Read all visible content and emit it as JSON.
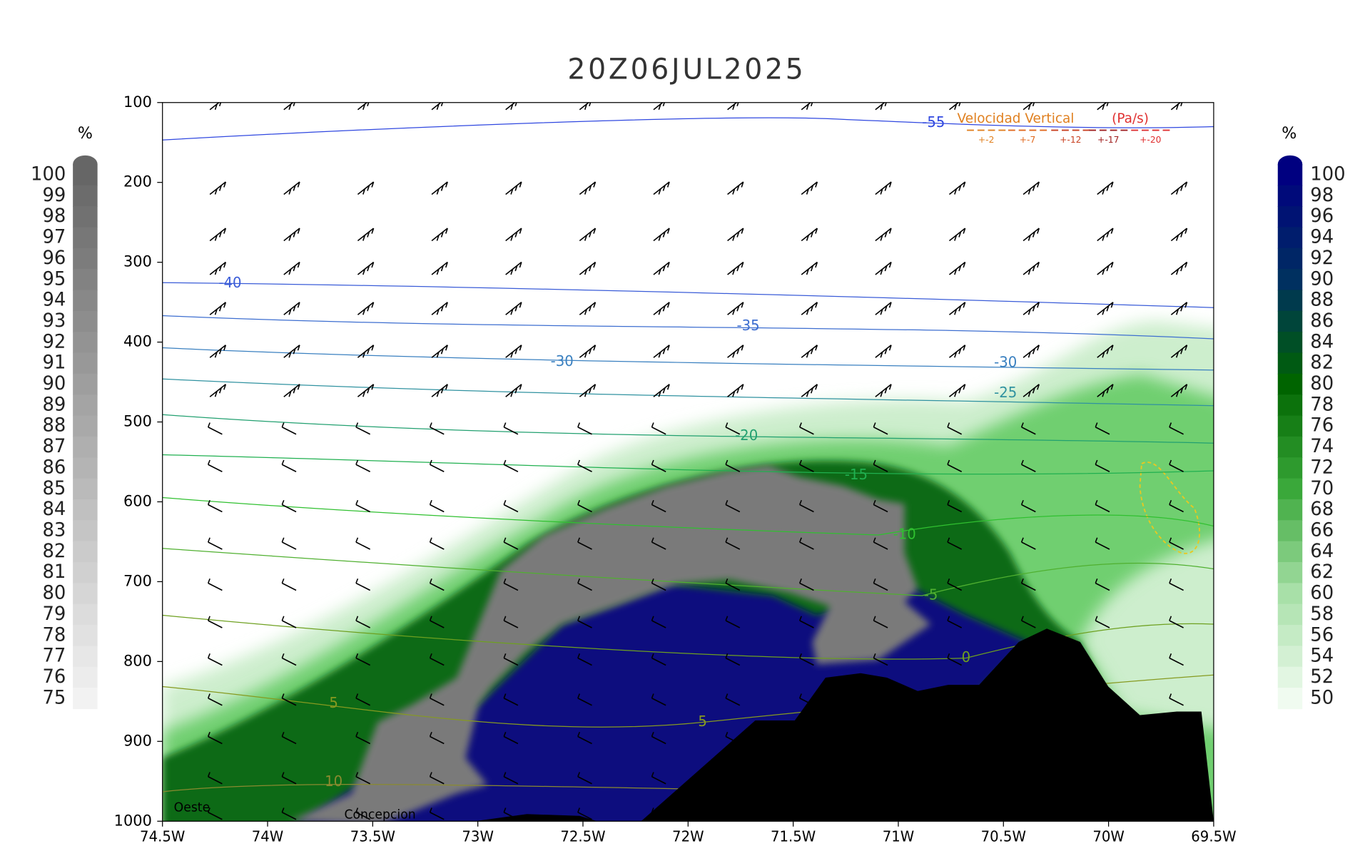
{
  "chart_data": {
    "type": "cross-section",
    "title": "20Z06JUL2025",
    "xlim": [
      -74.5,
      -69.5
    ],
    "xticks": [
      {
        "value": -74.5,
        "label": "74.5W"
      },
      {
        "value": -74,
        "label": "74W"
      },
      {
        "value": -73.5,
        "label": "73.5W"
      },
      {
        "value": -73,
        "label": "73W"
      },
      {
        "value": -72.5,
        "label": "72.5W"
      },
      {
        "value": -72,
        "label": "72W"
      },
      {
        "value": -71.5,
        "label": "71.5W"
      },
      {
        "value": -71,
        "label": "71W"
      },
      {
        "value": -70.5,
        "label": "70.5W"
      },
      {
        "value": -70,
        "label": "70W"
      },
      {
        "value": -69.5,
        "label": "69.5W"
      }
    ],
    "ylim": [
      1000,
      100
    ],
    "yticks": [
      100,
      200,
      300,
      400,
      500,
      600,
      700,
      800,
      900,
      1000
    ],
    "isotherms": [
      -55,
      -40,
      -35,
      -30,
      -25,
      -20,
      -15,
      -10,
      -5,
      0,
      5,
      10
    ],
    "isotherm_colors": [
      "#3048e0",
      "#3a5cd8",
      "#3d6ed0",
      "#3a80c0",
      "#3092a0",
      "#22a070",
      "#20b050",
      "#30c030",
      "#50b030",
      "#6ea020",
      "#869a20",
      "#8a8a30"
    ],
    "colorbars": [
      {
        "label": "%",
        "ticks": [
          100,
          99,
          98,
          97,
          96,
          95,
          94,
          93,
          92,
          91,
          90,
          89,
          88,
          87,
          86,
          85,
          84,
          83,
          82,
          81,
          80,
          79,
          78,
          77,
          76,
          75
        ],
        "colors": [
          "#666666",
          "#f2f2f2"
        ]
      },
      {
        "label": "%",
        "ticks": [
          100,
          98,
          96,
          94,
          92,
          90,
          88,
          86,
          84,
          82,
          80,
          78,
          76,
          74,
          72,
          70,
          68,
          66,
          64,
          62,
          60,
          58,
          56,
          54,
          52,
          50
        ],
        "colors": [
          "#000080",
          "#003060",
          "#006400",
          "#3aa83a",
          "#a8e0a8",
          "#f0fbf0"
        ]
      }
    ],
    "legend": {
      "title": "Velocidad Vertical",
      "units": "(Pa/s)",
      "levels": [
        "+-2",
        "+-7",
        "+-12",
        "+-17",
        "+-20"
      ],
      "colors": [
        "#e08020",
        "#e06a20",
        "#c84020",
        "#a02020",
        "#e03030"
      ]
    },
    "annotations": [
      "Oeste",
      "Concepcion"
    ]
  }
}
